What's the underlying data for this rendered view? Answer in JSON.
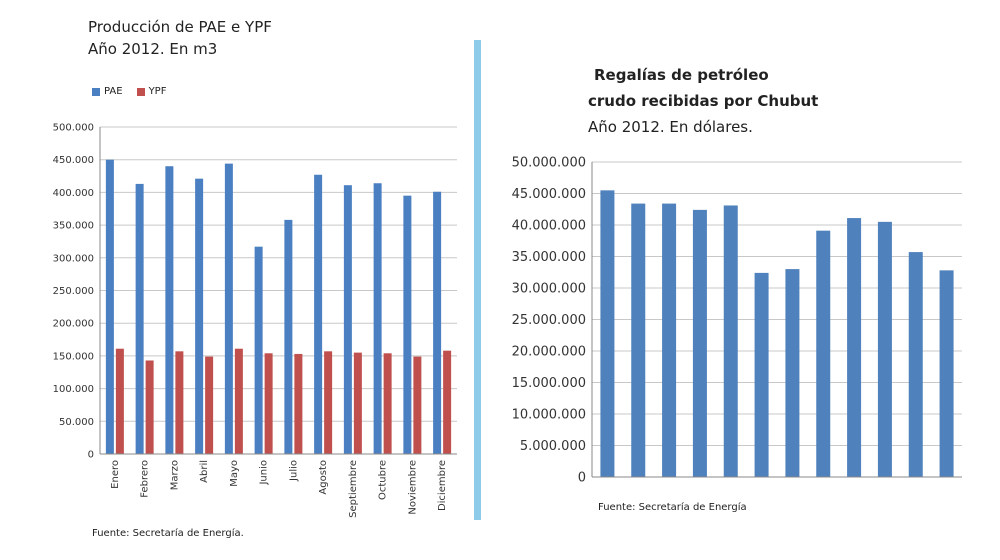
{
  "colors": {
    "pae": "#4a7fc1",
    "ypf": "#c0504d",
    "royalties": "#4f81bd",
    "divider": "#8ecbe8"
  },
  "chart_data": [
    {
      "type": "bar",
      "title": "Producción de PAE e YPF",
      "subtitle": "Año 2012. En m3",
      "categories": [
        "Enero",
        "Febrero",
        "Marzo",
        "Abril",
        "Mayo",
        "Junio",
        "Julio",
        "Agosto",
        "Septiembre",
        "Octubre",
        "Noviembre",
        "Diciembre"
      ],
      "series": [
        {
          "name": "PAE",
          "values": [
            450000,
            413000,
            440000,
            421000,
            444000,
            317000,
            358000,
            427000,
            411000,
            414000,
            395000,
            401000
          ]
        },
        {
          "name": "YPF",
          "values": [
            161000,
            143000,
            157000,
            149000,
            161000,
            154000,
            153000,
            157000,
            155000,
            154000,
            149000,
            158000
          ]
        }
      ],
      "ylim": [
        0,
        500000
      ],
      "yticks": [
        "0",
        "50.000",
        "100.000",
        "150.000",
        "200.000",
        "250.000",
        "300.000",
        "350.000",
        "400.000",
        "450.000",
        "500.000"
      ],
      "legend": "top-left",
      "grid": true,
      "source": "Fuente: Secretaría de Energía."
    },
    {
      "type": "bar",
      "title_line1": "Regalías de petróleo",
      "title_line2": "crudo recibidas por Chubut",
      "subtitle": "Año 2012. En dólares.",
      "categories": [
        "",
        "",
        "",
        "",
        "",
        "",
        "",
        "",
        "",
        "",
        "",
        ""
      ],
      "values": [
        45500000,
        43400000,
        43400000,
        42400000,
        43100000,
        32400000,
        33000000,
        39100000,
        41100000,
        40500000,
        35700000,
        32800000
      ],
      "ylim": [
        0,
        50000000
      ],
      "yticks": [
        "0",
        "5.000.000",
        "10.000.000",
        "15.000.000",
        "20.000.000",
        "25.000.000",
        "30.000.000",
        "35.000.000",
        "40.000.000",
        "45.000.000",
        "50.000.000"
      ],
      "grid": true,
      "source": "Fuente: Secretaría de Energía"
    }
  ]
}
